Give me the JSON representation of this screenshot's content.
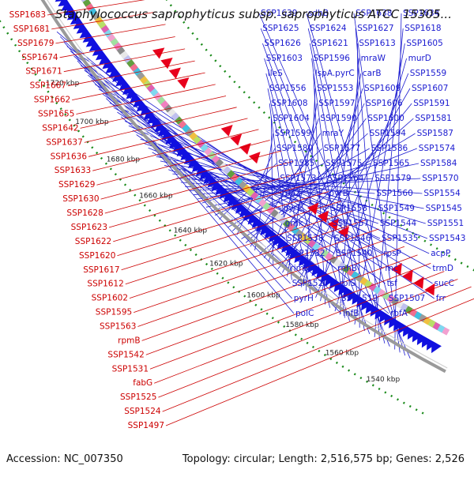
{
  "title": "Staphylococcus saprophyticus subsp. saprophyticus ATCC 15305...",
  "footer": {
    "accession": "Accession: NC_007350",
    "summary": "Topology: circular; Length: 2,516,575 bp; Genes: 2,526"
  },
  "colors": {
    "backbone": "#9a9a9a",
    "forward_strand": "#e8001c",
    "reverse_strand": "#1010e0",
    "dotted_guides": "#1a8a1a",
    "label_lines": "#1a1ad0",
    "left_labels": "#cc0000",
    "right_labels": "#1a1ad0"
  },
  "kbp_ticks": [
    "1720 kbp",
    "1700 kbp",
    "1680 kbp",
    "1660 kbp",
    "1640 kbp",
    "1620 kbp",
    "1600 kbp",
    "1580 kbp",
    "1560 kbp",
    "1540 kbp"
  ],
  "left_labels": [
    "SSP1683",
    "SSP1681",
    "SSP1679",
    "SSP1674",
    "SSP1671",
    "SSP1667",
    "SSP1662",
    "SSP1655",
    "SSP1642",
    "SSP1637",
    "SSP1636",
    "SSP1633",
    "SSP1629",
    "SSP1630",
    "SSP1628",
    "SSP1623",
    "SSP1622",
    "SSP1620",
    "SSP1617",
    "SSP1612",
    "SSP1602",
    "SSP1595",
    "SSP1563",
    "rpmB",
    "SSP1542",
    "SSP1531",
    "fabG",
    "SSP1525",
    "SSP1524",
    "SSP1497"
  ],
  "right_labels": [
    "SSP1639",
    "sdhB",
    "SSP1638",
    "SSP1634",
    "SSP1625",
    "SSP1624",
    "SSP1627",
    "SSP1618",
    "SSP1626",
    "SSP1621",
    "SSP1613",
    "SSP1605",
    "SSP1603",
    "SSP1596",
    "mraW",
    "murD",
    "ileS",
    "lspA.pyrC",
    "carB",
    "SSP1559",
    "SSP1556",
    "SSP1553",
    "SSP1609",
    "SSP1607",
    "SSP1608",
    "SSP1597",
    "SSP1606",
    "SSP1591",
    "SSP1604",
    "SSP1590",
    "SSP1600",
    "SSP1581",
    "SSP1599",
    "mraY",
    "SSP1594",
    "SSP1587",
    "SSP1580",
    "SSP1577",
    "SSP1586",
    "SSP1574",
    "SSP1585",
    "SSP1575",
    "SSP1565",
    "SSP1584",
    "SSP1573",
    "SSP1564",
    "SSP1579",
    "SSP1570",
    "rpoZ",
    "pyrB",
    "SSP1560",
    "SSP1554",
    "pyrE",
    "SSP1558",
    "SSP1549",
    "SSP1545",
    "gmk",
    "SSP1557",
    "SSP1544",
    "SSP1551",
    "SSP1538",
    "SSP1546",
    "SSP1535",
    "SSP1543",
    "SSP1532",
    "SSP1540",
    "rpsP",
    "acpP",
    "rimM",
    "rnhB",
    "rnc",
    "trmD",
    "SSP1520",
    "rplS",
    "tsf",
    "sucC",
    "pyrH",
    "SSP1519",
    "SSP1507",
    "frr",
    "polC",
    "infB",
    "rbfA"
  ]
}
